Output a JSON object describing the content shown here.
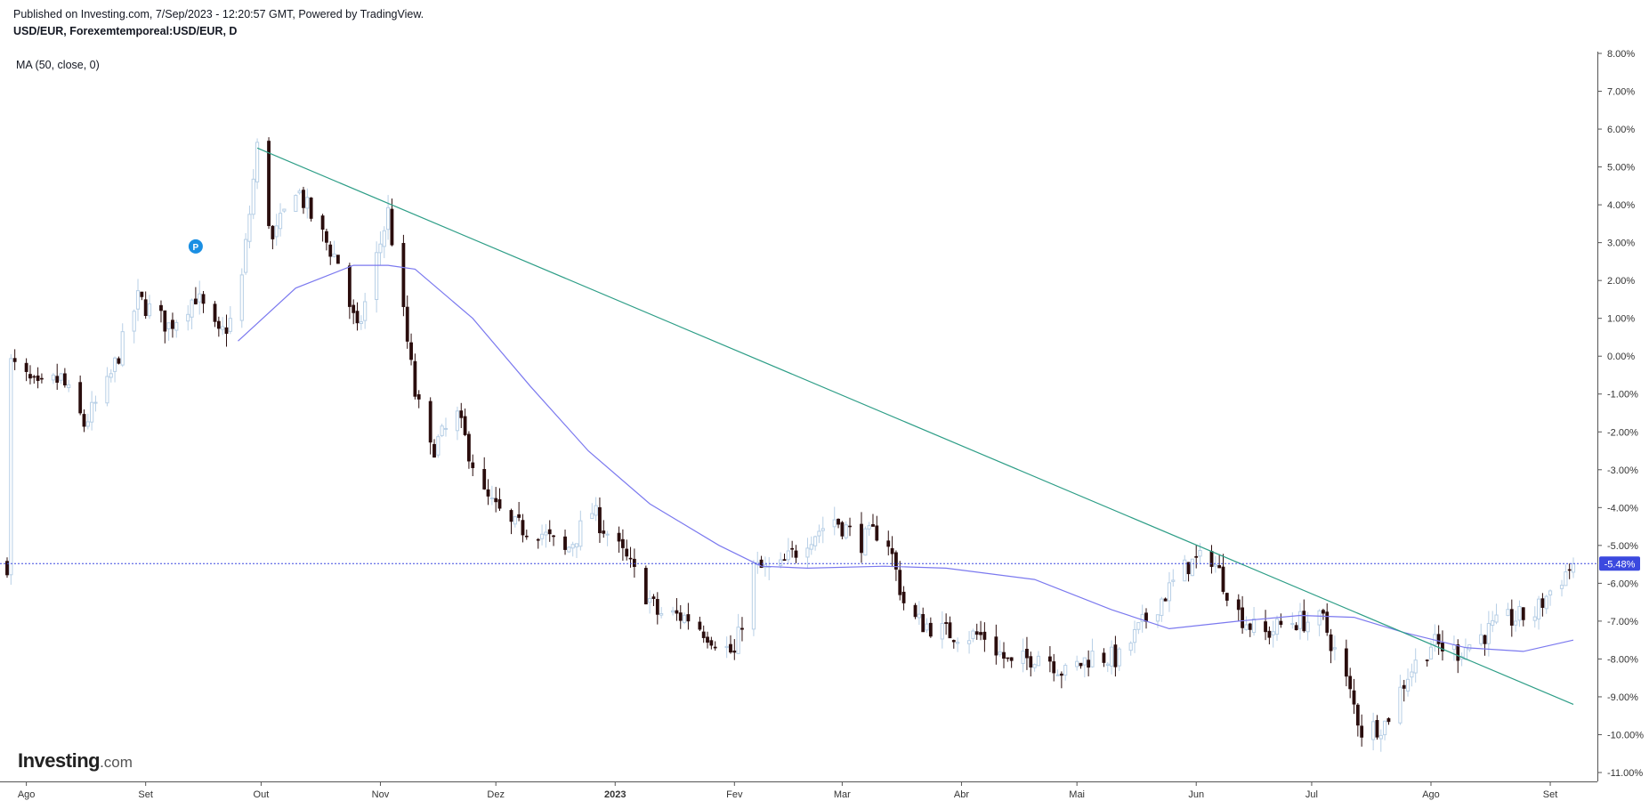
{
  "header": {
    "published_line": "Published on Investing.com, 7/Sep/2023 - 12:20:57 GMT, Powered by TradingView.",
    "symbol_line": "USD/EUR, Forexemtemporeal:USD/EUR, D"
  },
  "indicator_label": "MA (50, close, 0)",
  "logo": {
    "name": "Investing",
    "suffix": ".com"
  },
  "marker": {
    "label": "P"
  },
  "colors": {
    "bull": "#b7cfe6",
    "bear": "#2a0d0d",
    "ma": "#7b79ef",
    "trendline": "#2e9e87",
    "price_line": "#3b49df",
    "badge": "#3b49df"
  },
  "chart_data": {
    "type": "candlestick",
    "x_axis": {
      "labels": [
        "Ago",
        "Set",
        "Out",
        "Nov",
        "Dez",
        "2023",
        "Fev",
        "Mar",
        "Abr",
        "Mai",
        "Jun",
        "Jul",
        "Ago",
        "Set"
      ],
      "range": [
        "2022-07-27",
        "2023-09-07"
      ]
    },
    "y_axis": {
      "labels": [
        "8.00%",
        "7.00%",
        "6.00%",
        "5.00%",
        "4.00%",
        "3.00%",
        "2.00%",
        "1.00%",
        "0.00%",
        "-1.00%",
        "-2.00%",
        "-3.00%",
        "-4.00%",
        "-5.00%",
        "-6.00%",
        "-7.00%",
        "-8.00%",
        "-9.00%",
        "-10.00%",
        "-11.00%"
      ],
      "range": [
        -11,
        8
      ],
      "unit": "%",
      "side": "right"
    },
    "current_value": {
      "label": "-5.48%",
      "value": -5.48
    },
    "price_path": [
      [
        "2022-07-28",
        -0.2
      ],
      [
        "2022-08-04",
        -0.9
      ],
      [
        "2022-08-10",
        -0.6
      ],
      [
        "2022-08-16",
        -1.8
      ],
      [
        "2022-08-22",
        -0.8
      ],
      [
        "2022-08-30",
        1.5
      ],
      [
        "2022-09-07",
        0.8
      ],
      [
        "2022-09-14",
        1.6
      ],
      [
        "2022-09-20",
        0.5
      ],
      [
        "2022-09-25",
        1.2
      ],
      [
        "2022-09-30",
        5.5
      ],
      [
        "2022-10-04",
        3.0
      ],
      [
        "2022-10-10",
        4.5
      ],
      [
        "2022-10-15",
        3.5
      ],
      [
        "2022-10-21",
        2.5
      ],
      [
        "2022-10-26",
        0.6
      ],
      [
        "2022-11-03",
        3.8
      ],
      [
        "2022-11-10",
        -1.0
      ],
      [
        "2022-11-14",
        -2.5
      ],
      [
        "2022-11-21",
        -1.6
      ],
      [
        "2022-11-28",
        -3.7
      ],
      [
        "2022-12-05",
        -4.5
      ],
      [
        "2022-12-12",
        -4.6
      ],
      [
        "2022-12-19",
        -5.2
      ],
      [
        "2022-12-26",
        -4.1
      ],
      [
        "2023-01-04",
        -5.4
      ],
      [
        "2023-01-12",
        -6.8
      ],
      [
        "2023-01-20",
        -6.9
      ],
      [
        "2023-02-01",
        -7.9
      ],
      [
        "2023-02-06",
        -5.6
      ],
      [
        "2023-02-12",
        -5.7
      ],
      [
        "2023-02-20",
        -4.8
      ],
      [
        "2023-02-27",
        -4.3
      ],
      [
        "2023-03-06",
        -4.9
      ],
      [
        "2023-03-12",
        -4.5
      ],
      [
        "2023-03-18",
        -6.9
      ],
      [
        "2023-03-28",
        -7.3
      ],
      [
        "2023-04-07",
        -7.4
      ],
      [
        "2023-04-14",
        -8.2
      ],
      [
        "2023-04-22",
        -7.8
      ],
      [
        "2023-04-28",
        -8.4
      ],
      [
        "2023-05-05",
        -7.9
      ],
      [
        "2023-05-12",
        -8.0
      ],
      [
        "2023-05-20",
        -6.8
      ],
      [
        "2023-05-30",
        -5.5
      ],
      [
        "2023-06-05",
        -5.3
      ],
      [
        "2023-06-12",
        -6.8
      ],
      [
        "2023-06-18",
        -7.4
      ],
      [
        "2023-06-25",
        -7.0
      ],
      [
        "2023-07-04",
        -7.0
      ],
      [
        "2023-07-10",
        -8.6
      ],
      [
        "2023-07-14",
        -9.9
      ],
      [
        "2023-07-20",
        -9.7
      ],
      [
        "2023-07-26",
        -8.4
      ],
      [
        "2023-08-01",
        -7.6
      ],
      [
        "2023-08-08",
        -7.8
      ],
      [
        "2023-08-14",
        -7.4
      ],
      [
        "2023-08-20",
        -7.0
      ],
      [
        "2023-08-28",
        -6.8
      ],
      [
        "2023-09-01",
        -6.2
      ],
      [
        "2023-09-07",
        -5.48
      ]
    ],
    "ma_50": [
      [
        "2022-09-25",
        0.4
      ],
      [
        "2022-10-10",
        1.8
      ],
      [
        "2022-10-25",
        2.4
      ],
      [
        "2022-11-03",
        2.4
      ],
      [
        "2022-11-10",
        2.3
      ],
      [
        "2022-11-25",
        1.0
      ],
      [
        "2022-12-10",
        -0.8
      ],
      [
        "2022-12-25",
        -2.5
      ],
      [
        "2023-01-10",
        -3.9
      ],
      [
        "2023-01-28",
        -5.0
      ],
      [
        "2023-02-08",
        -5.55
      ],
      [
        "2023-02-20",
        -5.6
      ],
      [
        "2023-03-12",
        -5.55
      ],
      [
        "2023-03-28",
        -5.6
      ],
      [
        "2023-04-20",
        -5.9
      ],
      [
        "2023-05-10",
        -6.7
      ],
      [
        "2023-05-25",
        -7.2
      ],
      [
        "2023-06-12",
        -7.0
      ],
      [
        "2023-06-28",
        -6.85
      ],
      [
        "2023-07-12",
        -6.9
      ],
      [
        "2023-07-25",
        -7.3
      ],
      [
        "2023-08-10",
        -7.7
      ],
      [
        "2023-08-25",
        -7.8
      ],
      [
        "2023-09-07",
        -7.5
      ]
    ],
    "trendline": {
      "from": [
        "2022-09-30",
        5.5
      ],
      "to": [
        "2023-09-07",
        -9.2
      ]
    },
    "marker": {
      "date": "2022-09-14",
      "value": 2.9
    }
  }
}
